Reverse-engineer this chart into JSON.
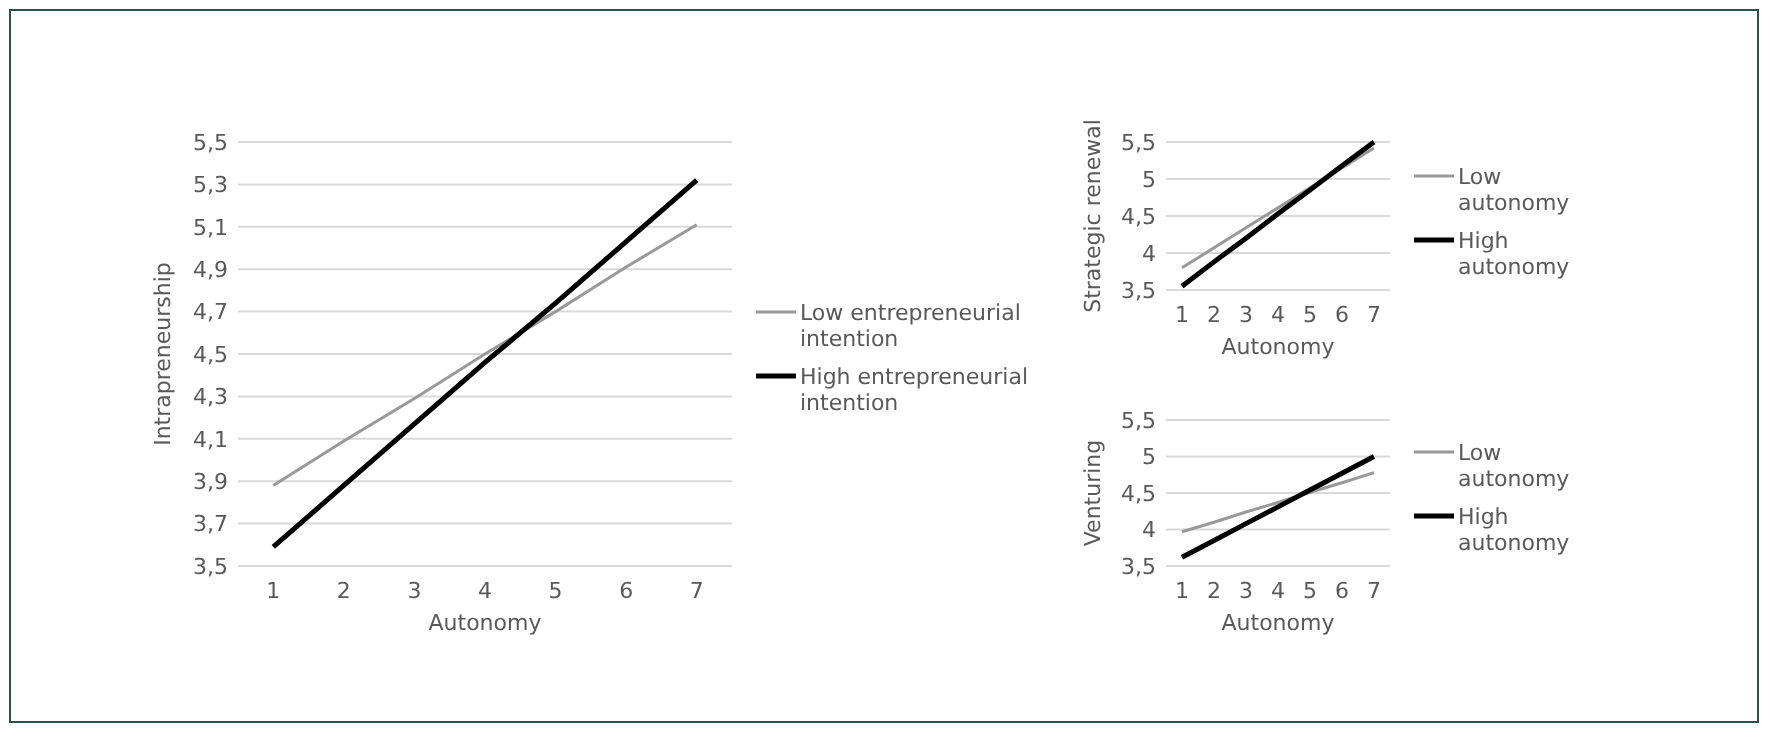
{
  "chart_data": [
    {
      "type": "line",
      "xlabel": "Autonomy",
      "ylabel": "Intrapreneurship",
      "categories": [
        "1",
        "2",
        "3",
        "4",
        "5",
        "6",
        "7"
      ],
      "ylim": [
        3.5,
        5.5
      ],
      "yticks": [
        {
          "value": 3.5,
          "label": "3,5"
        },
        {
          "value": 3.7,
          "label": "3,7"
        },
        {
          "value": 3.9,
          "label": "3,9"
        },
        {
          "value": 4.1,
          "label": "4,1"
        },
        {
          "value": 4.3,
          "label": "4,3"
        },
        {
          "value": 4.5,
          "label": "4,5"
        },
        {
          "value": 4.7,
          "label": "4,7"
        },
        {
          "value": 4.9,
          "label": "4,9"
        },
        {
          "value": 5.1,
          "label": "5,1"
        },
        {
          "value": 5.3,
          "label": "5,3"
        },
        {
          "value": 5.5,
          "label": "5,5"
        }
      ],
      "grid": "y",
      "legend": "right",
      "marker": "none",
      "series": [
        {
          "name": "Low entrepreneurial intention",
          "color": "#999999",
          "values": [
            3.88,
            4.09,
            4.29,
            4.5,
            4.7,
            4.91,
            5.11
          ]
        },
        {
          "name": "High entrepreneurial intention",
          "color": "#000000",
          "values": [
            3.59,
            3.88,
            4.17,
            4.46,
            4.74,
            5.03,
            5.32
          ]
        }
      ]
    },
    {
      "type": "line",
      "xlabel": "Autonomy",
      "ylabel": "Strategic renewal",
      "categories": [
        "1",
        "2",
        "3",
        "4",
        "5",
        "6",
        "7"
      ],
      "ylim": [
        3.5,
        5.5
      ],
      "yticks": [
        {
          "value": 3.5,
          "label": "3,5"
        },
        {
          "value": 4,
          "label": "4"
        },
        {
          "value": 4.5,
          "label": "4,5"
        },
        {
          "value": 5,
          "label": "5"
        },
        {
          "value": 5.5,
          "label": "5,5"
        }
      ],
      "grid": "y",
      "legend": "right",
      "marker": "none",
      "series": [
        {
          "name": "Low autonomy",
          "color": "#999999",
          "values": [
            3.8,
            4.07,
            4.34,
            4.61,
            4.88,
            5.15,
            5.42
          ]
        },
        {
          "name": "High autonomy",
          "color": "#000000",
          "values": [
            3.55,
            3.88,
            4.2,
            4.53,
            4.85,
            5.18,
            5.5
          ]
        }
      ]
    },
    {
      "type": "line",
      "xlabel": "Autonomy",
      "ylabel": "Venturing",
      "categories": [
        "1",
        "2",
        "3",
        "4",
        "5",
        "6",
        "7"
      ],
      "ylim": [
        3.5,
        5.5
      ],
      "yticks": [
        {
          "value": 3.5,
          "label": "3,5"
        },
        {
          "value": 4,
          "label": "4"
        },
        {
          "value": 4.5,
          "label": "4,5"
        },
        {
          "value": 5,
          "label": "5"
        },
        {
          "value": 5.5,
          "label": "5,5"
        }
      ],
      "grid": "y",
      "legend": "right",
      "marker": "none",
      "series": [
        {
          "name": "Low autonomy",
          "color": "#999999",
          "values": [
            3.97,
            4.1,
            4.24,
            4.37,
            4.51,
            4.64,
            4.78
          ]
        },
        {
          "name": "High autonomy",
          "color": "#000000",
          "values": [
            3.62,
            3.85,
            4.08,
            4.31,
            4.54,
            4.77,
            5.0
          ]
        }
      ]
    }
  ]
}
